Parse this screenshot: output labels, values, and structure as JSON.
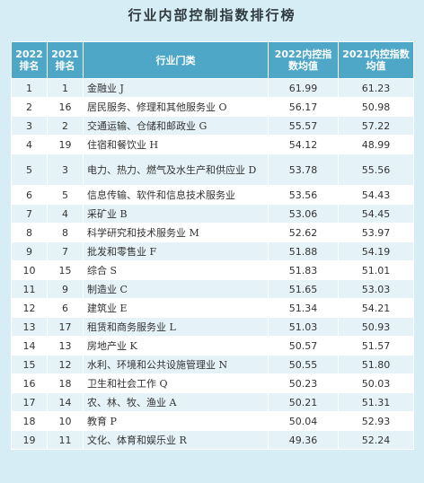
{
  "title": "行业内部控制指数排行榜",
  "headers": {
    "rank2022": "2022\n排名",
    "rank2021": "2021\n排名",
    "industry": "行业门类",
    "avg2022": "2022内控指\n数均值",
    "avg2021": "2021内控指数\n均值"
  },
  "rows": [
    {
      "r22": "1",
      "r21": "1",
      "industry": "金融业 J",
      "v22": "61.99",
      "v21": "61.23"
    },
    {
      "r22": "2",
      "r21": "16",
      "industry": "居民服务、修理和其他服务业 O",
      "v22": "56.17",
      "v21": "50.98"
    },
    {
      "r22": "3",
      "r21": "2",
      "industry": "交通运输、仓储和邮政业 G",
      "v22": "55.57",
      "v21": "57.22"
    },
    {
      "r22": "4",
      "r21": "19",
      "industry": "住宿和餐饮业 H",
      "v22": "54.12",
      "v21": "48.99"
    },
    {
      "r22": "5",
      "r21": "3",
      "industry": "电力、热力、燃气及水生产和供应业 D",
      "v22": "53.78",
      "v21": "55.56"
    },
    {
      "r22": "6",
      "r21": "5",
      "industry": "信息传输、软件和信息技术服务业",
      "v22": "53.56",
      "v21": "54.43"
    },
    {
      "r22": "7",
      "r21": "4",
      "industry": "采矿业 B",
      "v22": "53.06",
      "v21": "54.45"
    },
    {
      "r22": "8",
      "r21": "8",
      "industry": "科学研究和技术服务业 M",
      "v22": "52.62",
      "v21": "53.97"
    },
    {
      "r22": "9",
      "r21": "7",
      "industry": "批发和零售业 F",
      "v22": "51.88",
      "v21": "54.19"
    },
    {
      "r22": "10",
      "r21": "15",
      "industry": "综合 S",
      "v22": "51.83",
      "v21": "51.01"
    },
    {
      "r22": "11",
      "r21": "9",
      "industry": "制造业 C",
      "v22": "51.65",
      "v21": "53.03"
    },
    {
      "r22": "12",
      "r21": "6",
      "industry": "建筑业 E",
      "v22": "51.34",
      "v21": "54.21"
    },
    {
      "r22": "13",
      "r21": "17",
      "industry": "租赁和商务服务业 L",
      "v22": "51.03",
      "v21": "50.93"
    },
    {
      "r22": "14",
      "r21": "13",
      "industry": "房地产业 K",
      "v22": "50.57",
      "v21": "51.57"
    },
    {
      "r22": "15",
      "r21": "12",
      "industry": "水利、环境和公共设施管理业 N",
      "v22": "50.55",
      "v21": "51.80"
    },
    {
      "r22": "16",
      "r21": "18",
      "industry": "卫生和社会工作 Q",
      "v22": "50.23",
      "v21": "50.03"
    },
    {
      "r22": "17",
      "r21": "14",
      "industry": "农、林、牧、渔业 A",
      "v22": "50.21",
      "v21": "51.31"
    },
    {
      "r22": "18",
      "r21": "10",
      "industry": "教育 P",
      "v22": "50.04",
      "v21": "52.93"
    },
    {
      "r22": "19",
      "r21": "11",
      "industry": "文化、体育和娱乐业 R",
      "v22": "49.36",
      "v21": "52.24"
    }
  ]
}
